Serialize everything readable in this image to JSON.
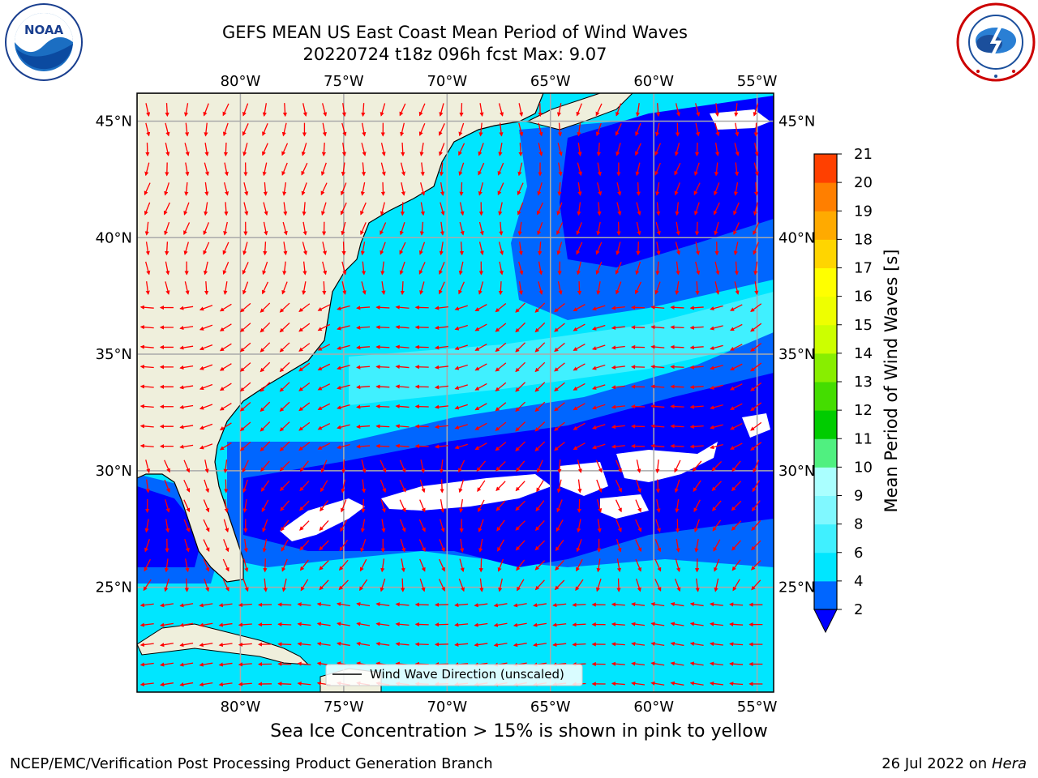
{
  "title": {
    "line1": "GEFS MEAN US East Coast Mean Period of Wind Waves",
    "line2": "20220724 t18z 096h fcst   Max: 9.07"
  },
  "logos": {
    "left": {
      "icon": "noaa-logo-icon",
      "text": "NOAA"
    },
    "right": {
      "icon": "national-weather-service-logo-icon"
    }
  },
  "map": {
    "lon_labels": [
      "80°W",
      "75°W",
      "70°W",
      "65°W",
      "60°W",
      "55°W"
    ],
    "lat_labels": [
      "45°N",
      "40°N",
      "35°N",
      "30°N",
      "25°N"
    ],
    "lon_range": [
      -85,
      -54.2
    ],
    "lat_range": [
      20.5,
      46.2
    ],
    "land_color": "#efefdc",
    "grid": true,
    "legend_text": "Wind Wave Direction (unscaled)",
    "arrow_color": "#ff0000"
  },
  "colorbar": {
    "label": "Mean Period of Wind Waves [s]",
    "ticks": [
      "2",
      "4",
      "6",
      "8",
      "9",
      "10",
      "11",
      "12",
      "13",
      "14",
      "15",
      "16",
      "17",
      "18",
      "19",
      "20",
      "21"
    ],
    "colors": [
      "#0066ff",
      "#00e6ff",
      "#40f0ff",
      "#80f8ff",
      "#aaffff",
      "#50f080",
      "#00cc00",
      "#44dd00",
      "#88ee00",
      "#ccff00",
      "#eeff00",
      "#ffff00",
      "#ffd500",
      "#ffaa00",
      "#ff7f00",
      "#ff4000",
      "#ff0000"
    ],
    "extend_color": "#0000ff"
  },
  "bottom_note": "Sea Ice Concentration > 15% is shown in pink to yellow",
  "footer": {
    "left": "NCEP/EMC/Verification Post Processing Product Generation Branch",
    "right_prefix": "26 Jul 2022 on ",
    "right_italic": "Hera"
  }
}
